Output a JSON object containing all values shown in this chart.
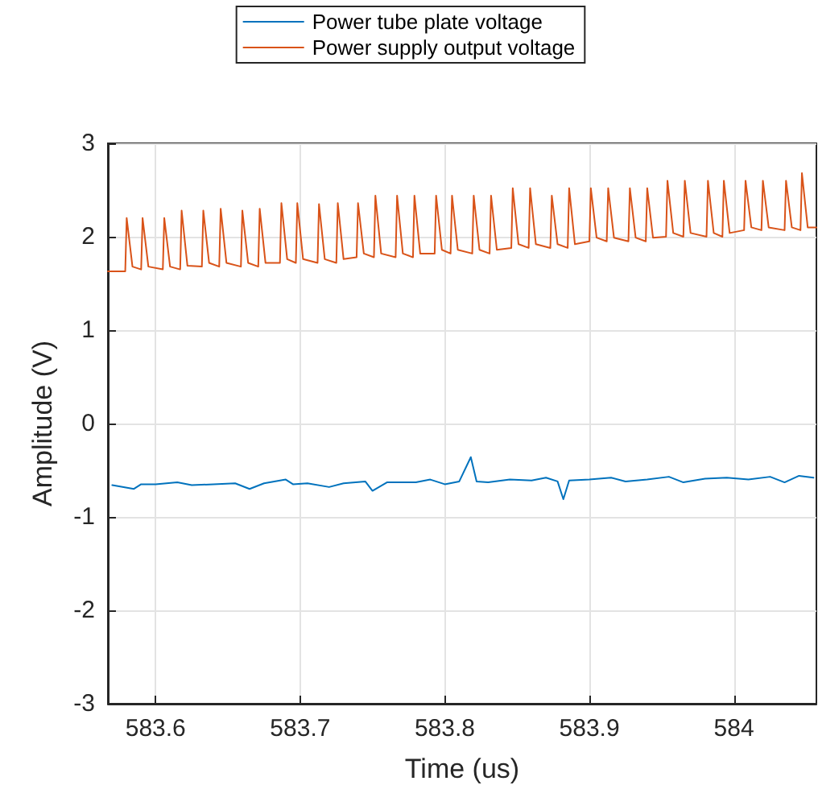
{
  "chart_data": {
    "type": "line",
    "xlabel": "Time (us)",
    "ylabel": "Amplitude (V)",
    "xlim": [
      583.567,
      584.057
    ],
    "xticks": [
      583.6,
      583.7,
      583.8,
      583.9,
      584
    ],
    "ylim": [
      -3,
      3
    ],
    "yticks": [
      -3,
      -2,
      -1,
      0,
      1,
      2,
      3
    ],
    "grid": true,
    "legend": "top",
    "marker": "none",
    "line_style": "solid",
    "series": [
      {
        "name": "Power tube plate voltage",
        "color": "#0072bd",
        "x": [
          583.57,
          583.585,
          583.59,
          583.6,
          583.615,
          583.625,
          583.64,
          583.655,
          583.665,
          583.675,
          583.69,
          583.695,
          583.705,
          583.72,
          583.73,
          583.745,
          583.75,
          583.76,
          583.78,
          583.79,
          583.8,
          583.81,
          583.818,
          583.822,
          583.83,
          583.845,
          583.86,
          583.87,
          583.878,
          583.882,
          583.886,
          583.9,
          583.915,
          583.925,
          583.94,
          583.955,
          583.965,
          583.98,
          583.995,
          584.01,
          584.025,
          584.035,
          584.045,
          584.055
        ],
        "values": [
          -0.66,
          -0.7,
          -0.65,
          -0.65,
          -0.63,
          -0.66,
          -0.65,
          -0.64,
          -0.7,
          -0.64,
          -0.6,
          -0.65,
          -0.64,
          -0.68,
          -0.64,
          -0.62,
          -0.72,
          -0.63,
          -0.63,
          -0.6,
          -0.65,
          -0.62,
          -0.36,
          -0.62,
          -0.63,
          -0.6,
          -0.61,
          -0.58,
          -0.62,
          -0.81,
          -0.61,
          -0.6,
          -0.58,
          -0.62,
          -0.6,
          -0.57,
          -0.63,
          -0.59,
          -0.58,
          -0.6,
          -0.57,
          -0.63,
          -0.56,
          -0.58
        ]
      },
      {
        "name": "Power supply output voltage",
        "color": "#d95319",
        "x": [
          583.567,
          583.579,
          583.58,
          583.584,
          583.59,
          583.591,
          583.595,
          583.605,
          583.606,
          583.61,
          583.617,
          583.618,
          583.622,
          583.632,
          583.633,
          583.637,
          583.644,
          583.645,
          583.649,
          583.659,
          583.66,
          583.664,
          583.671,
          583.672,
          583.676,
          583.686,
          583.687,
          583.691,
          583.697,
          583.698,
          583.702,
          583.712,
          583.713,
          583.717,
          583.725,
          583.726,
          583.73,
          583.739,
          583.74,
          583.744,
          583.751,
          583.752,
          583.756,
          583.766,
          583.767,
          583.771,
          583.778,
          583.779,
          583.783,
          583.793,
          583.794,
          583.798,
          583.804,
          583.805,
          583.809,
          583.819,
          583.82,
          583.824,
          583.831,
          583.832,
          583.836,
          583.846,
          583.847,
          583.851,
          583.858,
          583.859,
          583.863,
          583.873,
          583.874,
          583.878,
          583.885,
          583.886,
          583.89,
          583.9,
          583.901,
          583.905,
          583.912,
          583.913,
          583.917,
          583.927,
          583.928,
          583.932,
          583.939,
          583.94,
          583.944,
          583.953,
          583.954,
          583.958,
          583.965,
          583.966,
          583.97,
          583.981,
          583.982,
          583.986,
          583.992,
          583.993,
          583.997,
          584.007,
          584.008,
          584.012,
          584.019,
          584.02,
          584.024,
          584.035,
          584.036,
          584.04,
          584.046,
          584.047,
          584.051,
          584.057
        ],
        "values": [
          1.63,
          1.63,
          2.2,
          1.68,
          1.65,
          2.2,
          1.68,
          1.65,
          2.2,
          1.68,
          1.65,
          2.28,
          1.69,
          1.68,
          2.28,
          1.72,
          1.68,
          2.3,
          1.72,
          1.68,
          2.28,
          1.72,
          1.68,
          2.3,
          1.72,
          1.72,
          2.36,
          1.76,
          1.72,
          2.36,
          1.76,
          1.72,
          2.35,
          1.76,
          1.72,
          2.36,
          1.76,
          1.78,
          2.36,
          1.82,
          1.78,
          2.44,
          1.82,
          1.78,
          2.44,
          1.82,
          1.78,
          2.44,
          1.82,
          1.82,
          2.44,
          1.86,
          1.82,
          2.44,
          1.86,
          1.82,
          2.44,
          1.86,
          1.82,
          2.44,
          1.86,
          1.88,
          2.52,
          1.92,
          1.88,
          2.52,
          1.92,
          1.88,
          2.44,
          1.92,
          1.88,
          2.52,
          1.92,
          1.95,
          2.52,
          1.99,
          1.95,
          2.52,
          1.99,
          1.95,
          2.52,
          1.99,
          1.95,
          2.52,
          1.99,
          2.0,
          2.6,
          2.04,
          2.0,
          2.6,
          2.04,
          2.0,
          2.6,
          2.04,
          2.0,
          2.6,
          2.04,
          2.07,
          2.6,
          2.1,
          2.07,
          2.6,
          2.1,
          2.07,
          2.6,
          2.1,
          2.07,
          2.68,
          2.1,
          2.1
        ]
      }
    ]
  }
}
